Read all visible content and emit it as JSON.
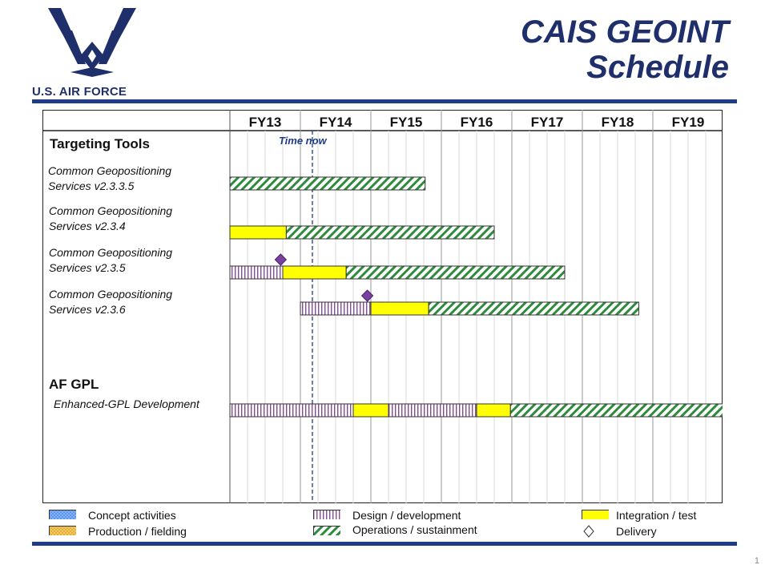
{
  "brand": {
    "logo_text": "U.S. AIR FORCE"
  },
  "header": {
    "title_line1": "CAIS GEOINT",
    "title_line2": "Schedule"
  },
  "colors": {
    "title": "#1f2f6b",
    "rule": "#1f3c88",
    "integration": "#ffff00",
    "operations": "#2e8b3c",
    "design": "#8a4a9a",
    "delivery": "#7b3f9e",
    "time_now": "#1f3c88"
  },
  "chart_data": {
    "type": "gantt",
    "fiscal_years": [
      "FY13",
      "FY14",
      "FY15",
      "FY16",
      "FY17",
      "FY18",
      "FY19"
    ],
    "time_now_label": "Time now",
    "time_now": 1.17,
    "sections": [
      {
        "title": "Targeting Tools",
        "row_index": 0
      },
      {
        "title": "AF GPL",
        "row_index": 4
      }
    ],
    "rows": [
      {
        "label": "Common Geopositioning Services v2.3.3.5",
        "segments": [
          {
            "kind": "operations",
            "start": 0.0,
            "end": 2.77
          }
        ]
      },
      {
        "label": "Common Geopositioning Services v2.3.4",
        "segments": [
          {
            "kind": "integration",
            "start": 0.0,
            "end": 0.8
          },
          {
            "kind": "operations",
            "start": 0.8,
            "end": 3.75
          }
        ]
      },
      {
        "label": "Common Geopositioning Services v2.3.5",
        "segments": [
          {
            "kind": "design",
            "start": 0.0,
            "end": 0.75
          },
          {
            "kind": "integration",
            "start": 0.75,
            "end": 1.65
          },
          {
            "kind": "operations",
            "start": 1.65,
            "end": 4.75
          }
        ],
        "delivery": 0.72
      },
      {
        "label": "Common Geopositioning Services v2.3.6",
        "segments": [
          {
            "kind": "design",
            "start": 1.0,
            "end": 2.0
          },
          {
            "kind": "integration",
            "start": 2.0,
            "end": 2.82
          },
          {
            "kind": "operations",
            "start": 2.82,
            "end": 5.8
          }
        ],
        "delivery": 1.95
      },
      {
        "label": "Enhanced-GPL Development",
        "segments": [
          {
            "kind": "design",
            "start": 0.0,
            "end": 1.75
          },
          {
            "kind": "integration",
            "start": 1.75,
            "end": 2.25
          },
          {
            "kind": "design",
            "start": 2.25,
            "end": 3.5
          },
          {
            "kind": "integration",
            "start": 3.5,
            "end": 3.98
          },
          {
            "kind": "operations",
            "start": 3.98,
            "end": 7.0
          }
        ]
      }
    ]
  },
  "legend": {
    "concept": "Concept activities",
    "production": "Production / fielding",
    "design": "Design / development",
    "operations": "Operations / sustainment",
    "integration": "Integration  / test",
    "delivery": "Delivery"
  },
  "page_number": "1"
}
